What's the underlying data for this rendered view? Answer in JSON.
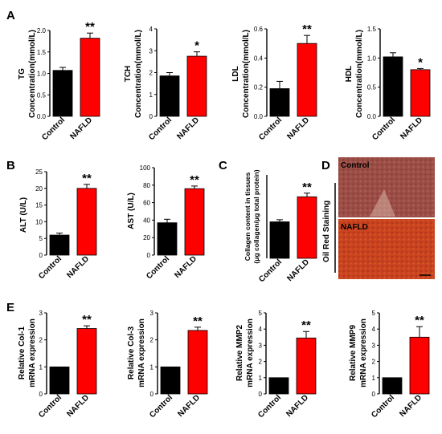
{
  "panel_letters": [
    "A",
    "B",
    "C",
    "D",
    "E"
  ],
  "colors": {
    "control": "#000000",
    "nafld": "#ff0000"
  },
  "chart_data": [
    {
      "panel": "A",
      "type": "bar",
      "title_label": "TG",
      "ylabel": "Concentration(mmol/L)",
      "categories": [
        "Control",
        "NAFLD"
      ],
      "values": [
        1.07,
        1.82
      ],
      "errors": [
        0.07,
        0.12
      ],
      "ylim": [
        0,
        2.0
      ],
      "yticks": [
        "0.0",
        "0.5",
        "1.0",
        "1.5",
        "2.0"
      ],
      "significance": "**"
    },
    {
      "panel": "A",
      "type": "bar",
      "title_label": "TCH",
      "ylabel": "Concentration(mmol/L)",
      "categories": [
        "Control",
        "NAFLD"
      ],
      "values": [
        1.85,
        2.75
      ],
      "errors": [
        0.15,
        0.2
      ],
      "ylim": [
        0,
        4
      ],
      "yticks": [
        "0",
        "1",
        "2",
        "3",
        "4"
      ],
      "significance": "*"
    },
    {
      "panel": "A",
      "type": "bar",
      "title_label": "LDL",
      "ylabel": "Concentration(mmol/L)",
      "categories": [
        "Control",
        "NAFLD"
      ],
      "values": [
        0.19,
        0.5
      ],
      "errors": [
        0.05,
        0.055
      ],
      "ylim": [
        0,
        0.6
      ],
      "yticks": [
        "0.0",
        "0.2",
        "0.4",
        "0.6"
      ],
      "significance": "**"
    },
    {
      "panel": "A",
      "type": "bar",
      "title_label": "HDL",
      "ylabel": "Concentration(mmol/L)",
      "categories": [
        "Control",
        "NAFLD"
      ],
      "values": [
        1.02,
        0.8
      ],
      "errors": [
        0.07,
        0.02
      ],
      "ylim": [
        0,
        1.5
      ],
      "yticks": [
        "0.0",
        "0.5",
        "1.0",
        "1.5"
      ],
      "significance": "*"
    },
    {
      "panel": "B",
      "type": "bar",
      "title_label": "",
      "ylabel": "ALT (U/L)",
      "categories": [
        "Control",
        "NAFLD"
      ],
      "values": [
        6,
        20
      ],
      "errors": [
        0.6,
        1.2
      ],
      "ylim": [
        0,
        25
      ],
      "yticks": [
        "0",
        "5",
        "10",
        "15",
        "20",
        "25"
      ],
      "significance": "**"
    },
    {
      "panel": "B",
      "type": "bar",
      "title_label": "",
      "ylabel": "AST (U/L)",
      "categories": [
        "Control",
        "NAFLD"
      ],
      "values": [
        37,
        76
      ],
      "errors": [
        4,
        3
      ],
      "ylim": [
        0,
        100
      ],
      "yticks": [
        "0",
        "20",
        "40",
        "60",
        "80",
        "100"
      ],
      "significance": "**"
    },
    {
      "panel": "C",
      "type": "bar",
      "title_label": "",
      "ylabel": "Collagen content in tissues",
      "ylabel2": "(μg collagen/μg total protein)",
      "categories": [
        "Control",
        "NAFLD"
      ],
      "values": [
        0.35,
        0.59
      ],
      "errors": [
        0.02,
        0.035
      ],
      "ylim": [
        0,
        0.8
      ],
      "yticks": [],
      "significance": "**"
    },
    {
      "panel": "E",
      "type": "bar",
      "title_label": "",
      "ylabel": "Relative Col-1",
      "ylabel2": "mRNA expression",
      "categories": [
        "Control",
        "NAFLD"
      ],
      "values": [
        1,
        2.42
      ],
      "errors": [
        0,
        0.1
      ],
      "ylim": [
        0,
        3
      ],
      "yticks": [
        "0",
        "1",
        "2",
        "3"
      ],
      "significance": "**"
    },
    {
      "panel": "E",
      "type": "bar",
      "title_label": "",
      "ylabel": "Relative Col-3",
      "ylabel2": "mRNA expression",
      "categories": [
        "Control",
        "NAFLD"
      ],
      "values": [
        1,
        2.35
      ],
      "errors": [
        0,
        0.12
      ],
      "ylim": [
        0,
        3
      ],
      "yticks": [
        "0",
        "1",
        "2",
        "3"
      ],
      "significance": "**"
    },
    {
      "panel": "E",
      "type": "bar",
      "title_label": "",
      "ylabel": "Relative MMP2",
      "ylabel2": "mRNA expression",
      "categories": [
        "Control",
        "NAFLD"
      ],
      "values": [
        1,
        3.45
      ],
      "errors": [
        0,
        0.4
      ],
      "ylim": [
        0,
        5
      ],
      "yticks": [
        "0",
        "1",
        "2",
        "3",
        "4",
        "5"
      ],
      "significance": "**"
    },
    {
      "panel": "E",
      "type": "bar",
      "title_label": "",
      "ylabel": "Relative MMP9",
      "ylabel2": "mRNA expression",
      "categories": [
        "Control",
        "NAFLD"
      ],
      "values": [
        1,
        3.5
      ],
      "errors": [
        0,
        0.65
      ],
      "ylim": [
        0,
        5
      ],
      "yticks": [
        "0",
        "1",
        "2",
        "3",
        "4",
        "5"
      ],
      "significance": "**"
    }
  ],
  "staining": {
    "side_label": "Oil Red Staining",
    "images": [
      {
        "label": "Control"
      },
      {
        "label": "NAFLD"
      }
    ]
  }
}
